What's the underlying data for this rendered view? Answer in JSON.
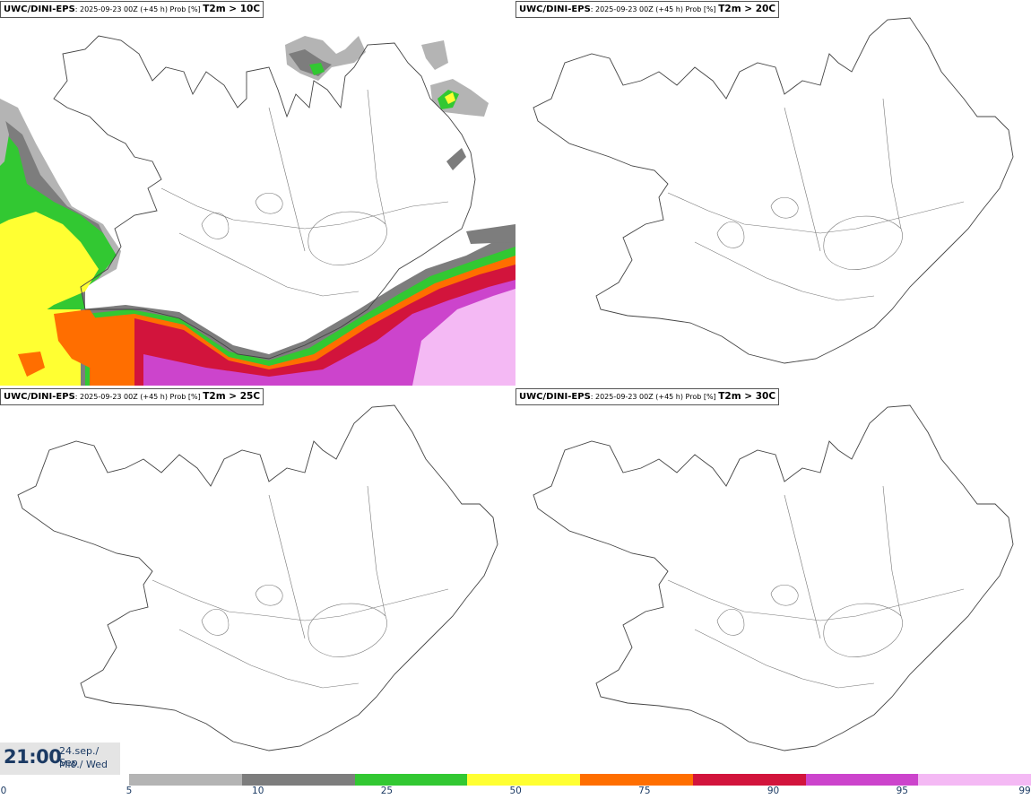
{
  "panels": [
    {
      "model": "UWC/DINI-EPS",
      "run": ": 2025-09-23 00Z (+45 h) Prob [%]",
      "param": "T2m > 10C"
    },
    {
      "model": "UWC/DINI-EPS",
      "run": ": 2025-09-23 00Z (+45 h) Prob [%]",
      "param": "T2m > 20C"
    },
    {
      "model": "UWC/DINI-EPS",
      "run": ": 2025-09-23 00Z (+45 h) Prob [%]",
      "param": "T2m > 25C"
    },
    {
      "model": "UWC/DINI-EPS",
      "run": ": 2025-09-23 00Z (+45 h) Prob [%]",
      "param": "T2m > 30C"
    }
  ],
  "valid_time": {
    "time": "21:00",
    "date_line1": "24.sep./ Sep",
    "date_line2": "Mið./ Wed"
  },
  "colorbar": {
    "colors": [
      "#ffffff",
      "#b4b4b4",
      "#7d7d7d",
      "#32c832",
      "#ffff32",
      "#ff6e00",
      "#d2143c",
      "#cc44cc",
      "#f4b9f4"
    ],
    "ticks": [
      "0",
      "5",
      "10",
      "25",
      "50",
      "75",
      "90",
      "95",
      "99"
    ]
  },
  "map_colors": {
    "coast": "#444444",
    "rivers": "#777777"
  }
}
